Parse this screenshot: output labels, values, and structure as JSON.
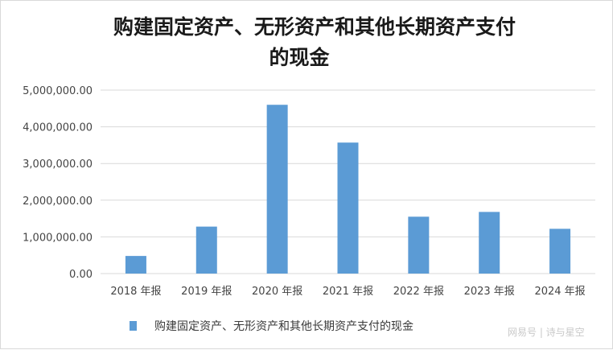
{
  "chart_data": {
    "type": "bar",
    "title_lines": [
      "购建固定资产、无形资产和其他长期资产支付",
      "的现金"
    ],
    "categories": [
      "2018 年报",
      "2019 年报",
      "2020 年报",
      "2021 年报",
      "2022 年报",
      "2023 年报",
      "2024 年报"
    ],
    "series": [
      {
        "name": "购建固定资产、无形资产和其他长期资产支付的现金",
        "values": [
          480000,
          1280000,
          4600000,
          3570000,
          1550000,
          1680000,
          1220000
        ]
      }
    ],
    "y_ticks": [
      "0.00",
      "1,000,000.00",
      "2,000,000.00",
      "3,000,000.00",
      "4,000,000.00",
      "5,000,000.00"
    ],
    "ylim": [
      0,
      5000000
    ],
    "grid": true,
    "legend_position": "bottom",
    "bar_color": "#5b9bd5"
  },
  "watermark": "网易号 | 诗与星空"
}
